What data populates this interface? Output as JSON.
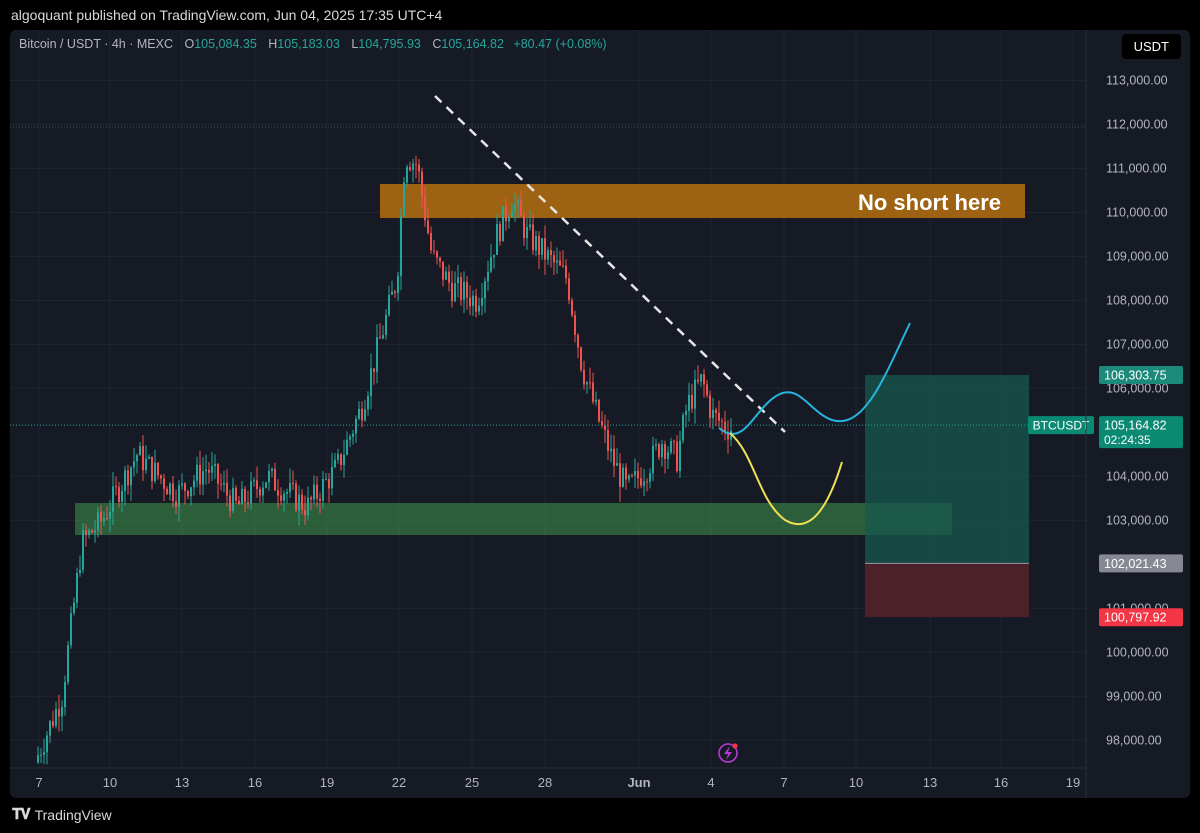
{
  "header": {
    "published": "algoquant published on TradingView.com, Jun 04, 2025 17:35 UTC+4"
  },
  "symbol": {
    "name": "Bitcoin / USDT",
    "interval": "4h",
    "exchange": "MEXC",
    "open_label": "O",
    "open": "105,084.35",
    "high_label": "H",
    "high": "105,183.03",
    "low_label": "L",
    "low": "104,795.93",
    "close_label": "C",
    "close": "105,164.82",
    "change": "+80.47 (+0.08%)"
  },
  "currency": "USDT",
  "annotation": {
    "text": "No short here",
    "color": "#a96810"
  },
  "price_axis": {
    "labels": [
      "113,000.00",
      "112,000.00",
      "111,000.00",
      "110,000.00",
      "109,000.00",
      "108,000.00",
      "107,000.00",
      "106,000.00",
      "104,000.00",
      "103,000.00",
      "101,000.00",
      "100,000.00",
      "99,000.00",
      "98,000.00"
    ]
  },
  "badges": {
    "target": {
      "value": "106,303.75",
      "color": "#1b8a7a"
    },
    "current": {
      "symbol": "BTCUSDT",
      "price": "105,164.82",
      "countdown": "02:24:35",
      "color": "#0a8a73"
    },
    "entry": {
      "value": "102,021.43",
      "color": "#868993"
    },
    "stop": {
      "value": "100,797.92",
      "color": "#f23645"
    }
  },
  "time_axis": {
    "labels": [
      "7",
      "10",
      "13",
      "16",
      "19",
      "22",
      "25",
      "28",
      "Jun",
      "4",
      "7",
      "10",
      "13",
      "16",
      "19"
    ]
  },
  "colors": {
    "up": "#26a69a",
    "down": "#ef5350",
    "resistance": "#a96810",
    "support": "#3c8c47",
    "path_blue": "#26b5e0",
    "path_yellow": "#f0e155"
  },
  "footer": {
    "brand": "TradingView",
    "logo_icon": "tradingview-logo-icon"
  }
}
